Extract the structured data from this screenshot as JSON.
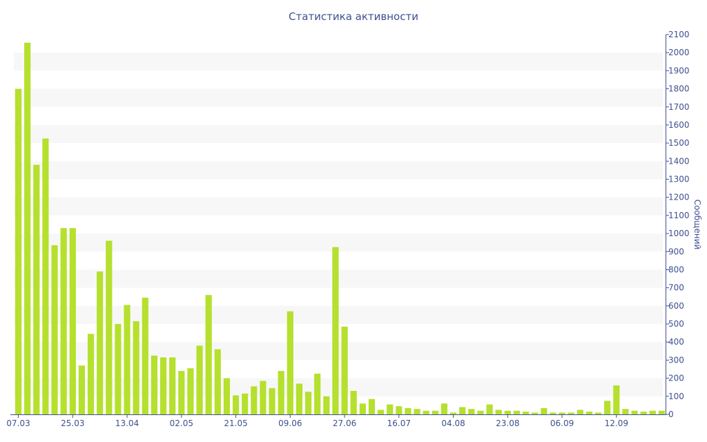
{
  "chart_data": {
    "type": "bar",
    "title": "Статистика активности",
    "ylabel": "Сообщений",
    "xlabel": "",
    "ylim": [
      0,
      2100
    ],
    "y_ticks": [
      0,
      100,
      200,
      300,
      400,
      500,
      600,
      700,
      800,
      900,
      1000,
      1100,
      1200,
      1300,
      1400,
      1500,
      1600,
      1700,
      1800,
      1900,
      2000,
      2100
    ],
    "x_tick_labels": [
      {
        "label": "07.03",
        "index": 0
      },
      {
        "label": "25.03",
        "index": 6
      },
      {
        "label": "13.04",
        "index": 12
      },
      {
        "label": "02.05",
        "index": 18
      },
      {
        "label": "21.05",
        "index": 24
      },
      {
        "label": "09.06",
        "index": 30
      },
      {
        "label": "27.06",
        "index": 36
      },
      {
        "label": "16.07",
        "index": 42
      },
      {
        "label": "04.08",
        "index": 48
      },
      {
        "label": "23.08",
        "index": 54
      },
      {
        "label": "06.09",
        "index": 60
      },
      {
        "label": "12.09",
        "index": 66
      }
    ],
    "values": [
      1800,
      2055,
      1380,
      1525,
      935,
      1030,
      1030,
      270,
      445,
      790,
      960,
      500,
      605,
      515,
      645,
      325,
      315,
      315,
      240,
      255,
      380,
      660,
      360,
      200,
      105,
      115,
      155,
      185,
      145,
      240,
      570,
      170,
      125,
      225,
      100,
      925,
      485,
      130,
      60,
      85,
      25,
      55,
      45,
      35,
      30,
      20,
      20,
      60,
      10,
      40,
      30,
      20,
      55,
      25,
      20,
      20,
      15,
      10,
      35,
      10,
      10,
      10,
      25,
      15,
      10,
      75,
      160,
      30,
      20,
      15,
      20,
      20
    ],
    "bar_color": "#b5e02e",
    "grid": "alternating horizontal bands",
    "band_color": "#f7f7f7",
    "axis_color": "#3e4f8f",
    "y_axis_position": "right"
  }
}
